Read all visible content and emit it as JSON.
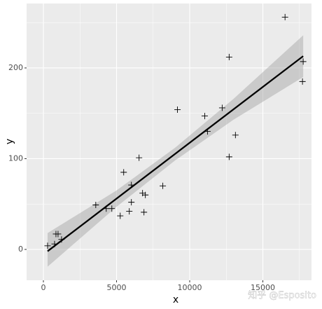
{
  "chart_data": {
    "type": "scatter",
    "x_label": "x",
    "y_label": "y",
    "x": [
      286,
      764,
      859,
      1002,
      1241,
      3580,
      4296,
      4678,
      5251,
      5489,
      5871,
      6014,
      6014,
      6539,
      6778,
      6874,
      6969,
      8162,
      9165,
      11026,
      11217,
      12220,
      12697,
      12697,
      13126,
      16516,
      17709,
      17757
    ],
    "y": [
      4,
      6,
      17,
      17,
      11,
      49,
      45,
      45,
      37,
      85,
      42,
      71,
      52,
      101,
      62,
      41,
      60,
      70,
      154,
      147,
      130,
      156,
      212,
      102,
      126,
      256,
      185,
      207
    ],
    "fit": {
      "x": [
        286,
        17757
      ],
      "y": [
        -2,
        213
      ]
    },
    "band": {
      "x": [
        286,
        5000,
        9000,
        13000,
        17757
      ],
      "lower": [
        -19,
        47,
        98,
        143,
        190
      ],
      "upper": [
        18,
        65,
        112,
        166,
        236
      ]
    },
    "xlim": [
      -1148,
      18325
    ],
    "ylim": [
      -34,
      271
    ],
    "xticks": [
      0,
      5000,
      10000,
      15000
    ],
    "yticks": [
      0,
      100,
      200
    ],
    "xminor": [
      2500,
      7500,
      12500,
      17500
    ],
    "yminor": [
      50,
      150,
      250
    ],
    "grid": true,
    "watermark": "知乎 @Esposito"
  }
}
